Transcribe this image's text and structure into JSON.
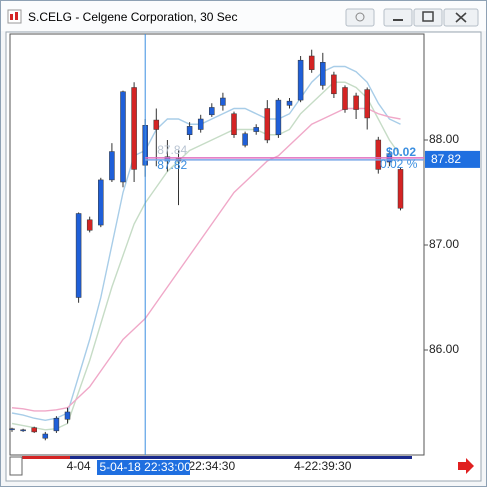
{
  "chart_data": {
    "type": "candlestick",
    "title": "S.CELG - Celgene Corporation, 30 Sec",
    "categories": [
      null,
      null,
      null,
      null,
      null,
      null,
      "4-04",
      null,
      null,
      null,
      null,
      null,
      null,
      null,
      null,
      null,
      null,
      null,
      "22:34:30",
      null,
      null,
      null,
      null,
      null,
      null,
      null,
      null,
      null,
      "4-22:39:30",
      null,
      null,
      null,
      null,
      null,
      null,
      null
    ],
    "candles": {
      "up_color": "#1f5fd8",
      "down_color": "#d42424",
      "open": [
        85.24,
        85.23,
        85.26,
        85.16,
        85.23,
        85.34,
        86.5,
        87.24,
        87.19,
        87.62,
        87.6,
        88.5,
        87.76,
        88.19,
        87.8,
        87.82,
        88.05,
        88.1,
        88.24,
        88.33,
        88.25,
        87.95,
        88.08,
        88.3,
        88.05,
        88.33,
        88.38,
        88.8,
        88.52,
        88.62,
        88.5,
        88.42,
        88.48,
        88.0,
        87.79,
        87.72
      ],
      "high": [
        85.26,
        85.25,
        85.27,
        85.22,
        85.37,
        85.45,
        87.31,
        87.27,
        87.64,
        87.97,
        88.47,
        88.55,
        88.2,
        88.3,
        88.0,
        87.9,
        88.17,
        88.24,
        88.35,
        88.45,
        88.27,
        88.08,
        88.15,
        88.38,
        88.4,
        88.4,
        88.8,
        88.86,
        88.83,
        88.65,
        88.52,
        88.45,
        88.5,
        88.03,
        87.9,
        87.74
      ],
      "low": [
        85.22,
        85.22,
        85.21,
        85.14,
        85.21,
        85.3,
        86.45,
        87.12,
        87.17,
        87.6,
        87.55,
        87.6,
        87.65,
        87.75,
        87.7,
        87.38,
        88.0,
        88.07,
        88.22,
        88.28,
        88.02,
        87.93,
        88.05,
        87.97,
        88.02,
        88.3,
        88.36,
        88.64,
        88.48,
        88.4,
        88.26,
        88.2,
        88.1,
        87.68,
        87.75,
        87.33
      ],
      "close": [
        85.25,
        85.24,
        85.22,
        85.2,
        85.35,
        85.41,
        87.3,
        87.14,
        87.62,
        87.89,
        88.46,
        87.72,
        88.14,
        88.1,
        87.84,
        87.8,
        88.13,
        88.2,
        88.31,
        88.4,
        88.05,
        88.06,
        88.12,
        88.0,
        88.38,
        88.37,
        88.76,
        88.67,
        88.74,
        88.44,
        88.29,
        88.29,
        88.21,
        87.72,
        87.87,
        87.35
      ]
    },
    "moving_averages": [
      {
        "color": "#a8cde8",
        "values": [
          85.4,
          85.38,
          85.35,
          85.33,
          85.35,
          85.4,
          85.75,
          86.1,
          86.5,
          87.0,
          87.5,
          87.85,
          87.9,
          88.1,
          88.2,
          88.2,
          88.15,
          88.15,
          88.2,
          88.25,
          88.3,
          88.3,
          88.25,
          88.2,
          88.2,
          88.25,
          88.4,
          88.55,
          88.65,
          88.7,
          88.7,
          88.65,
          88.55,
          88.35,
          88.2,
          88.15
        ]
      },
      {
        "color": "#c6dcc6",
        "values": [
          85.3,
          85.28,
          85.26,
          85.24,
          85.25,
          85.3,
          85.6,
          85.9,
          86.25,
          86.6,
          86.9,
          87.2,
          87.4,
          87.55,
          87.7,
          87.8,
          87.9,
          87.95,
          88.0,
          88.05,
          88.1,
          88.1,
          88.1,
          88.05,
          88.05,
          88.1,
          88.25,
          88.35,
          88.45,
          88.55,
          88.55,
          88.5,
          88.4,
          88.2,
          88.0,
          87.85
        ]
      },
      {
        "color": "#f0a8c8",
        "values": [
          85.45,
          85.44,
          85.42,
          85.42,
          85.43,
          85.45,
          85.55,
          85.65,
          85.8,
          85.95,
          86.1,
          86.2,
          86.3,
          86.45,
          86.6,
          86.75,
          86.9,
          87.05,
          87.2,
          87.35,
          87.5,
          87.6,
          87.7,
          87.8,
          87.85,
          87.95,
          88.05,
          88.15,
          88.2,
          88.25,
          88.3,
          88.3,
          88.3,
          88.25,
          88.22,
          88.2
        ]
      }
    ],
    "ylim": [
      85,
      89
    ],
    "yticks": [
      {
        "value": 86,
        "label": "86.00"
      },
      {
        "value": 87,
        "label": "87.00"
      },
      {
        "value": 88,
        "label": "88.00"
      }
    ],
    "cursor": {
      "index": 12,
      "label": "5-04-18 22:33:00",
      "price": 87.82,
      "reference": 87.84
    },
    "change": {
      "amount": "$0.02",
      "percent": "0.02 %"
    }
  }
}
